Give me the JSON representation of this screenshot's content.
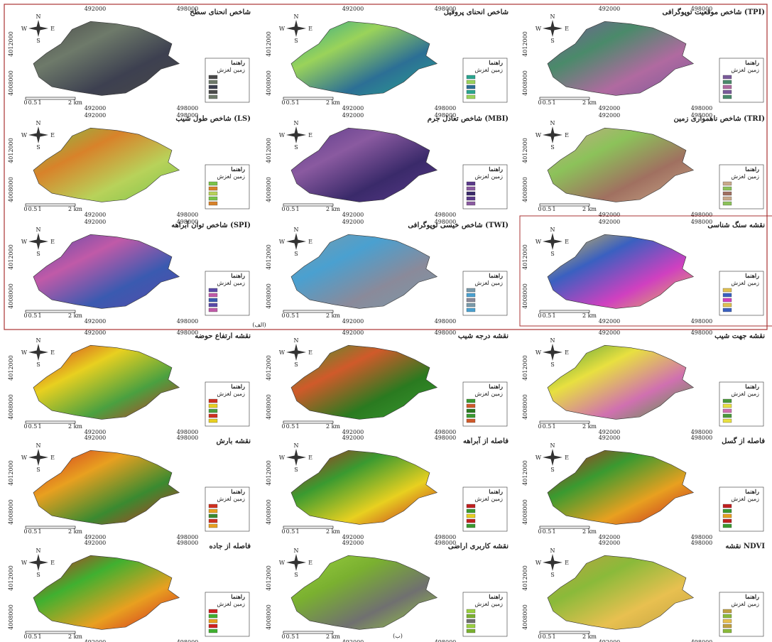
{
  "section_a_label": "(الف)",
  "section_b_label": "(ب)",
  "compass": {
    "n": "N",
    "s": "S",
    "w": "W",
    "e": "E"
  },
  "coords": {
    "x1": "492000",
    "x2": "498000",
    "y1": "4012000",
    "y2": "4008000"
  },
  "scale": [
    "0",
    "0.5",
    "1",
    "2 km"
  ],
  "legend": {
    "title": "راهنما",
    "landslide": "زمین لغزش"
  },
  "panels": [
    {
      "title": "شاخص انحنای سطح"
    },
    {
      "title": "شاخص انحنای پروفیل"
    },
    {
      "title": "شاخص موقعیت توپوگرافی (TPI)"
    },
    {
      "title": "شاخص طول شیب (LS)"
    },
    {
      "title": "شاخص تعادل جرم (MBI)"
    },
    {
      "title": "شاخص ناهمواری زمین (TRI)"
    },
    {
      "title": "شاخص توان آبراهه (SPI)"
    },
    {
      "title": "شاخص خیسی توپوگرافی (TWI)"
    },
    {
      "title": "نقشه سنگ شناسی"
    },
    {
      "title": "نقشه ارتفاع حوضه"
    },
    {
      "title": "نقشه درجه شیب"
    },
    {
      "title": "نقشه جهت شیب"
    },
    {
      "title": "نقشه بارش"
    },
    {
      "title": "فاصله از آبراهه"
    },
    {
      "title": "فاصله از گسل"
    },
    {
      "title": "فاصله از جاده"
    },
    {
      "title": "نقشه کاربری اراضی"
    },
    {
      "title": "نقشه NDVI"
    }
  ]
}
